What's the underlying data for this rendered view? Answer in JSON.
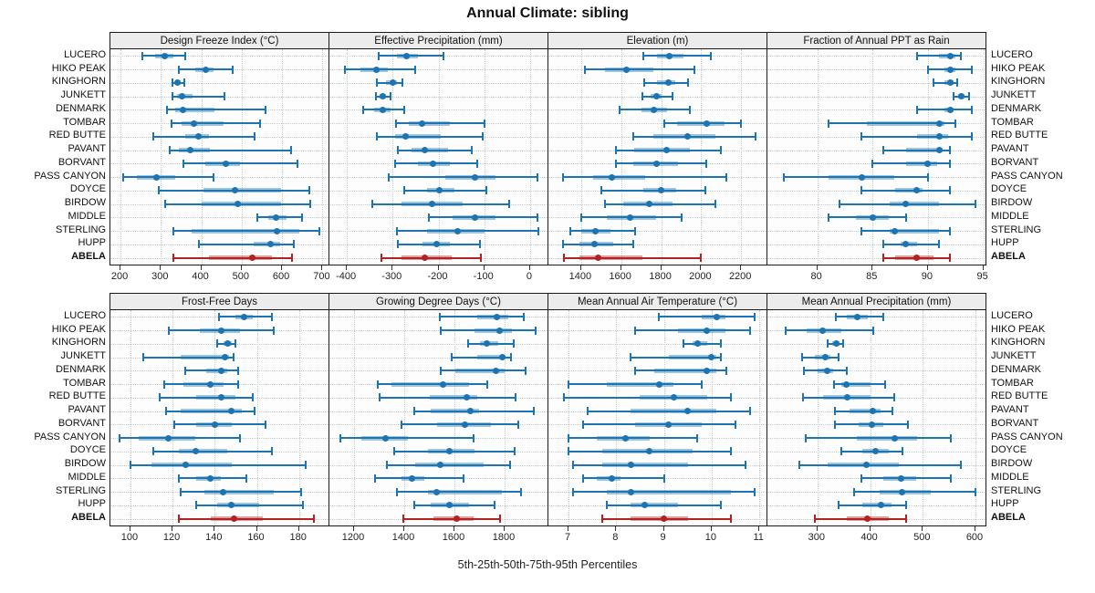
{
  "title": "Annual Climate: sibling",
  "caption": "5th-25th-50th-75th-95th Percentiles",
  "highlight_site": "ABELA",
  "colors": {
    "series": "#1c74b0",
    "series_band": "rgba(28,116,176,0.42)",
    "highlight": "#b22222",
    "highlight_band": "rgba(178,34,34,0.42)",
    "grid": "#c6cbce",
    "strip_bg": "#ececec",
    "panel_border": "#1a1a1a"
  },
  "chart_data": {
    "type": "dot-interval-trellis",
    "layout": "2 rows x 4 columns, shared category axis, axis below each panel row",
    "percentile_labels": [
      "5th",
      "25th",
      "50th",
      "75th",
      "95th"
    ],
    "categories": [
      "LUCERO",
      "HIKO PEAK",
      "KINGHORN",
      "JUNKETT",
      "DENMARK",
      "TOMBAR",
      "RED BUTTE",
      "PAVANT",
      "BORVANT",
      "PASS CANYON",
      "DOYCE",
      "BIRDOW",
      "MIDDLE",
      "STERLING",
      "HUPP",
      "ABELA"
    ],
    "panels": [
      {
        "title": "Design Freeze Index (°C)",
        "xlim": [
          175,
          715
        ],
        "ticks": [
          200,
          300,
          400,
          500,
          600,
          700
        ],
        "values": [
          [
            255,
            285,
            310,
            330,
            360
          ],
          [
            345,
            385,
            410,
            430,
            478
          ],
          [
            328,
            336,
            342,
            350,
            358
          ],
          [
            328,
            340,
            352,
            378,
            458
          ],
          [
            315,
            335,
            355,
            432,
            560
          ],
          [
            327,
            350,
            382,
            455,
            545
          ],
          [
            282,
            360,
            392,
            420,
            532
          ],
          [
            322,
            345,
            372,
            422,
            622
          ],
          [
            355,
            410,
            460,
            495,
            638
          ],
          [
            207,
            240,
            288,
            335,
            430
          ],
          [
            295,
            405,
            483,
            597,
            668
          ],
          [
            310,
            400,
            490,
            598,
            670
          ],
          [
            538,
            565,
            585,
            612,
            650
          ],
          [
            330,
            375,
            587,
            643,
            692
          ],
          [
            395,
            530,
            572,
            595,
            630
          ],
          [
            330,
            420,
            527,
            575,
            625
          ]
        ]
      },
      {
        "title": "Effective Precipitation (mm)",
        "xlim": [
          -438,
          38
        ],
        "ticks": [
          -400,
          -300,
          -200,
          -100,
          0
        ],
        "values": [
          [
            -330,
            -290,
            -270,
            -245,
            -190
          ],
          [
            -405,
            -370,
            -335,
            -310,
            -250
          ],
          [
            -335,
            -315,
            -300,
            -290,
            -278
          ],
          [
            -337,
            -328,
            -322,
            -315,
            -305
          ],
          [
            -365,
            -340,
            -322,
            -305,
            -275
          ],
          [
            -292,
            -265,
            -235,
            -175,
            -100
          ],
          [
            -335,
            -295,
            -272,
            -195,
            -103
          ],
          [
            -288,
            -258,
            -230,
            -180,
            -128
          ],
          [
            -295,
            -245,
            -212,
            -175,
            -115
          ],
          [
            -308,
            -185,
            -120,
            -75,
            15
          ],
          [
            -275,
            -225,
            -198,
            -165,
            -95
          ],
          [
            -345,
            -280,
            -215,
            -148,
            -45
          ],
          [
            -222,
            -170,
            -120,
            -75,
            15
          ],
          [
            -290,
            -225,
            -158,
            -100,
            18
          ],
          [
            -288,
            -235,
            -205,
            -175,
            -110
          ],
          [
            -325,
            -280,
            -230,
            -170,
            -108
          ]
        ]
      },
      {
        "title": "Elevation (m)",
        "xlim": [
          1236,
          2327
        ],
        "ticks": [
          1400,
          1600,
          1800,
          2000,
          2200
        ],
        "values": [
          [
            1710,
            1780,
            1840,
            1910,
            2050
          ],
          [
            1420,
            1520,
            1625,
            1760,
            1965
          ],
          [
            1715,
            1780,
            1835,
            1870,
            1935
          ],
          [
            1705,
            1745,
            1775,
            1800,
            1855
          ],
          [
            1590,
            1700,
            1765,
            1830,
            1945
          ],
          [
            1815,
            1880,
            2030,
            2115,
            2200
          ],
          [
            1660,
            1760,
            1930,
            2070,
            2270
          ],
          [
            1575,
            1665,
            1825,
            1945,
            2100
          ],
          [
            1575,
            1660,
            1775,
            1885,
            2025
          ],
          [
            1310,
            1460,
            1555,
            1720,
            2125
          ],
          [
            1500,
            1710,
            1800,
            1875,
            2020
          ],
          [
            1520,
            1610,
            1740,
            1855,
            2070
          ],
          [
            1400,
            1530,
            1645,
            1775,
            1900
          ],
          [
            1345,
            1400,
            1470,
            1545,
            1670
          ],
          [
            1310,
            1390,
            1465,
            1560,
            1660
          ],
          [
            1315,
            1390,
            1485,
            1705,
            2000
          ]
        ]
      },
      {
        "title": "Fraction of Annual PPT as Rain",
        "xlim": [
          75.5,
          95.2
        ],
        "ticks": [
          80,
          85,
          90,
          95
        ],
        "values": [
          [
            89,
            91,
            92,
            92.5,
            93
          ],
          [
            90,
            91.5,
            92,
            92.5,
            94
          ],
          [
            90.5,
            91.5,
            92,
            92.3,
            92.6
          ],
          [
            92.3,
            92.7,
            93,
            93.3,
            93.7
          ],
          [
            89,
            91.5,
            92,
            92.3,
            94
          ],
          [
            81,
            84.5,
            91,
            91.5,
            92.5
          ],
          [
            84,
            89,
            91,
            91.8,
            94
          ],
          [
            86,
            88,
            91,
            91.3,
            92
          ],
          [
            85,
            88,
            90,
            90.8,
            92
          ],
          [
            77,
            81,
            84,
            87,
            90
          ],
          [
            84,
            87,
            89,
            89.5,
            92
          ],
          [
            82,
            86.5,
            88,
            91,
            94.3
          ],
          [
            81,
            83.5,
            85,
            86.5,
            88
          ],
          [
            84,
            86.5,
            87,
            91,
            92
          ],
          [
            86,
            87.5,
            88,
            89,
            91
          ],
          [
            86,
            87,
            89,
            90.5,
            92
          ]
        ]
      },
      {
        "title": "Frost-Free Days",
        "xlim": [
          90.5,
          194
        ],
        "ticks": [
          100,
          120,
          140,
          160,
          180
        ],
        "values": [
          [
            142,
            150,
            154,
            158,
            167
          ],
          [
            118,
            133,
            143,
            152,
            168
          ],
          [
            141,
            144,
            146,
            148,
            150
          ],
          [
            106,
            124,
            145,
            147,
            149
          ],
          [
            126,
            136,
            143,
            146,
            151
          ],
          [
            116,
            125,
            138,
            144,
            151
          ],
          [
            114,
            131,
            143,
            150,
            158
          ],
          [
            117,
            124,
            148,
            153,
            159
          ],
          [
            121,
            131,
            140,
            148,
            164
          ],
          [
            95,
            104,
            118,
            131,
            152
          ],
          [
            111,
            123,
            131,
            146,
            167
          ],
          [
            100,
            110,
            126,
            148,
            183
          ],
          [
            123,
            131,
            138,
            143,
            155
          ],
          [
            124,
            135,
            144,
            168,
            181
          ],
          [
            131,
            141,
            148,
            161,
            182
          ],
          [
            123,
            138,
            149,
            163,
            187
          ]
        ]
      },
      {
        "title": "Growing Degree Days (°C)",
        "xlim": [
          1102,
          1971
        ],
        "ticks": [
          1200,
          1400,
          1600,
          1800
        ],
        "values": [
          [
            1540,
            1690,
            1770,
            1815,
            1875
          ],
          [
            1545,
            1680,
            1780,
            1830,
            1925
          ],
          [
            1655,
            1700,
            1730,
            1775,
            1835
          ],
          [
            1590,
            1690,
            1790,
            1805,
            1825
          ],
          [
            1545,
            1605,
            1765,
            1800,
            1885
          ],
          [
            1295,
            1350,
            1555,
            1660,
            1730
          ],
          [
            1300,
            1500,
            1650,
            1690,
            1845
          ],
          [
            1440,
            1505,
            1665,
            1700,
            1915
          ],
          [
            1390,
            1530,
            1640,
            1745,
            1855
          ],
          [
            1145,
            1230,
            1325,
            1415,
            1675
          ],
          [
            1360,
            1495,
            1580,
            1680,
            1840
          ],
          [
            1330,
            1445,
            1545,
            1715,
            1820
          ],
          [
            1285,
            1390,
            1430,
            1480,
            1635
          ],
          [
            1370,
            1495,
            1530,
            1790,
            1865
          ],
          [
            1440,
            1505,
            1580,
            1660,
            1760
          ],
          [
            1395,
            1515,
            1610,
            1675,
            1780
          ]
        ]
      },
      {
        "title": "Mean Annual Air Temperature (°C)",
        "xlim": [
          6.58,
          11.15
        ],
        "ticks": [
          7,
          8,
          9,
          10,
          11
        ],
        "values": [
          [
            8.9,
            9.8,
            10.1,
            10.3,
            10.9
          ],
          [
            8.4,
            9.3,
            9.9,
            10.3,
            10.8
          ],
          [
            9.4,
            9.6,
            9.7,
            9.9,
            10.2
          ],
          [
            8.3,
            9.1,
            10.0,
            10.1,
            10.2
          ],
          [
            8.4,
            8.8,
            9.9,
            10.1,
            10.3
          ],
          [
            7.0,
            7.8,
            8.9,
            9.2,
            9.8
          ],
          [
            6.9,
            8.5,
            9.2,
            9.9,
            10.4
          ],
          [
            7.4,
            8.3,
            9.5,
            10.1,
            10.8
          ],
          [
            7.3,
            8.4,
            9.1,
            9.8,
            10.5
          ],
          [
            7.0,
            7.6,
            8.2,
            8.7,
            9.7
          ],
          [
            7.0,
            7.7,
            8.7,
            9.6,
            10.4
          ],
          [
            7.1,
            7.7,
            8.3,
            9.5,
            10.7
          ],
          [
            7.3,
            7.6,
            7.9,
            8.1,
            9.0
          ],
          [
            7.1,
            7.8,
            8.3,
            10.4,
            10.9
          ],
          [
            7.8,
            8.3,
            8.6,
            9.3,
            10.2
          ],
          [
            7.7,
            8.3,
            9.0,
            9.5,
            10.4
          ]
        ]
      },
      {
        "title": "Mean Annual Precipitation (mm)",
        "xlim": [
          205,
          619
        ],
        "ticks": [
          300,
          400,
          500,
          600
        ],
        "values": [
          [
            335,
            355,
            375,
            395,
            425
          ],
          [
            240,
            280,
            310,
            345,
            405
          ],
          [
            320,
            328,
            335,
            341,
            348
          ],
          [
            270,
            295,
            315,
            325,
            340
          ],
          [
            275,
            300,
            318,
            330,
            355
          ],
          [
            332,
            345,
            355,
            400,
            428
          ],
          [
            272,
            310,
            357,
            400,
            445
          ],
          [
            333,
            360,
            405,
            420,
            442
          ],
          [
            333,
            378,
            403,
            425,
            472
          ],
          [
            277,
            375,
            447,
            490,
            553
          ],
          [
            345,
            385,
            410,
            435,
            462
          ],
          [
            265,
            320,
            393,
            455,
            573
          ],
          [
            383,
            425,
            458,
            488,
            553
          ],
          [
            370,
            418,
            460,
            515,
            600
          ],
          [
            340,
            385,
            420,
            440,
            468
          ],
          [
            295,
            355,
            395,
            435,
            468
          ]
        ]
      }
    ]
  }
}
